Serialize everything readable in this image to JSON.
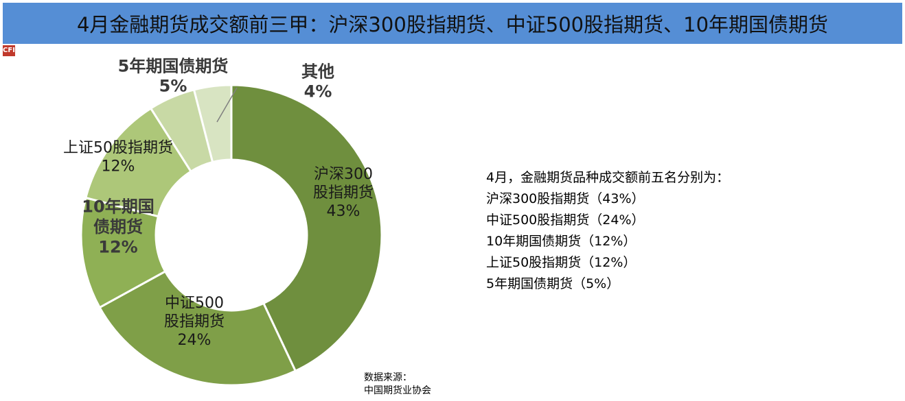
{
  "title": "4月金融期货成交额前三甲：沪深300股指期货、中证500股指期货、10年期国债期货",
  "logo_text": "CFI",
  "summary": {
    "heading": "4月，金融期货品种成交额前五名分别为：",
    "lines": [
      "沪深300股指期货（43%）",
      "中证500股指期货（24%）",
      "10年期国债期货（12%）",
      "上证50股指期货（12%）",
      "5年期国债期货（5%）"
    ]
  },
  "source": {
    "label": "数据来源：",
    "name": "中国期货业协会"
  },
  "chart_data": {
    "type": "pie",
    "donut": true,
    "start": "12 o'clock, clockwise",
    "slices": [
      {
        "label_lines": [
          "沪深300",
          "股指期货"
        ],
        "value": 43,
        "value_text": "43%",
        "color": "#6f8f3e",
        "bold": false
      },
      {
        "label_lines": [
          "中证500",
          "股指期货"
        ],
        "value": 24,
        "value_text": "24%",
        "color": "#7f9f48",
        "bold": false
      },
      {
        "label_lines": [
          "10年期国",
          "债期货"
        ],
        "value": 12,
        "value_text": "12%",
        "color": "#8fb055",
        "bold": true
      },
      {
        "label_lines": [
          "上证50股指期货"
        ],
        "value": 12,
        "value_text": "12%",
        "color": "#adc779",
        "bold": false
      },
      {
        "label_lines": [
          "5年期国债期货"
        ],
        "value": 5,
        "value_text": "5%",
        "color": "#c8d9a5",
        "bold": true
      },
      {
        "label_lines": [
          "其他"
        ],
        "value": 4,
        "value_text": "4%",
        "color": "#d8e4c2",
        "bold": true
      }
    ]
  }
}
